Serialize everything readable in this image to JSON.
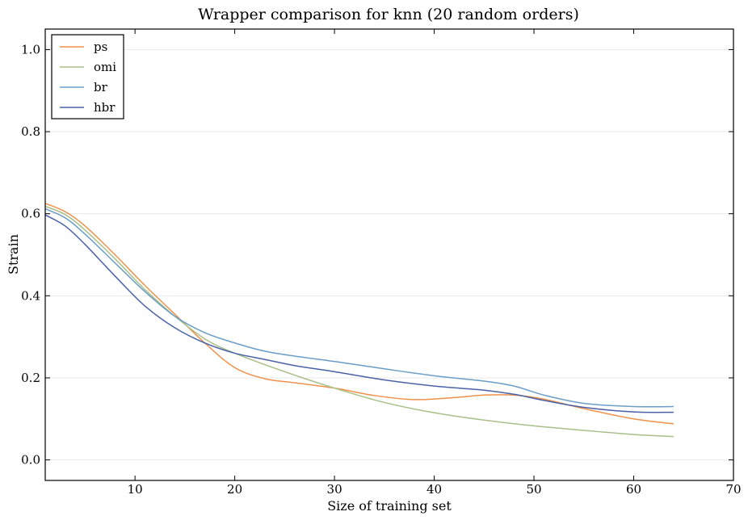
{
  "chart_data": {
    "type": "line",
    "title": "Wrapper comparison for knn (20 random orders)",
    "xlabel": "Size of training set",
    "ylabel": "Strain",
    "xlim": [
      1,
      70
    ],
    "ylim": [
      -0.05,
      1.05
    ],
    "xticks": [
      10,
      20,
      30,
      40,
      50,
      60,
      70
    ],
    "yticks": [
      0.0,
      0.2,
      0.4,
      0.6,
      0.8,
      1.0
    ],
    "xtick_labels": [
      "10",
      "20",
      "30",
      "40",
      "50",
      "60",
      "70"
    ],
    "ytick_labels": [
      "0.0",
      "0.2",
      "0.4",
      "0.6",
      "0.8",
      "1.0"
    ],
    "grid": "horizontal",
    "legend_position": "top-left",
    "series": [
      {
        "name": "ps",
        "color": "#f0914a",
        "x": [
          1,
          3,
          5,
          8,
          11,
          14,
          17,
          20,
          23,
          26,
          30,
          34,
          38,
          42,
          45,
          48,
          51,
          55,
          60,
          64
        ],
        "y": [
          0.625,
          0.605,
          0.57,
          0.5,
          0.425,
          0.355,
          0.285,
          0.225,
          0.198,
          0.188,
          0.175,
          0.157,
          0.147,
          0.152,
          0.158,
          0.158,
          0.148,
          0.125,
          0.1,
          0.088
        ]
      },
      {
        "name": "omi",
        "color": "#a9bf88",
        "x": [
          1,
          3,
          5,
          8,
          11,
          14,
          17,
          20,
          25,
          30,
          35,
          40,
          45,
          50,
          55,
          60,
          64
        ],
        "y": [
          0.618,
          0.598,
          0.56,
          0.49,
          0.415,
          0.35,
          0.295,
          0.26,
          0.215,
          0.175,
          0.14,
          0.115,
          0.097,
          0.083,
          0.072,
          0.062,
          0.057
        ]
      },
      {
        "name": "br",
        "color": "#6a9ec8",
        "x": [
          1,
          3,
          5,
          8,
          11,
          14,
          17,
          20,
          23,
          26,
          30,
          35,
          40,
          45,
          48,
          51,
          55,
          60,
          64
        ],
        "y": [
          0.612,
          0.59,
          0.55,
          0.48,
          0.41,
          0.35,
          0.31,
          0.285,
          0.265,
          0.253,
          0.24,
          0.222,
          0.205,
          0.192,
          0.18,
          0.158,
          0.138,
          0.13,
          0.13
        ]
      },
      {
        "name": "hbr",
        "color": "#4a62a8",
        "x": [
          1,
          3,
          5,
          8,
          11,
          14,
          17,
          20,
          23,
          26,
          30,
          35,
          40,
          45,
          48,
          51,
          55,
          60,
          64
        ],
        "y": [
          0.597,
          0.57,
          0.525,
          0.448,
          0.375,
          0.322,
          0.285,
          0.26,
          0.245,
          0.23,
          0.215,
          0.195,
          0.18,
          0.17,
          0.16,
          0.145,
          0.128,
          0.117,
          0.116
        ]
      }
    ]
  }
}
